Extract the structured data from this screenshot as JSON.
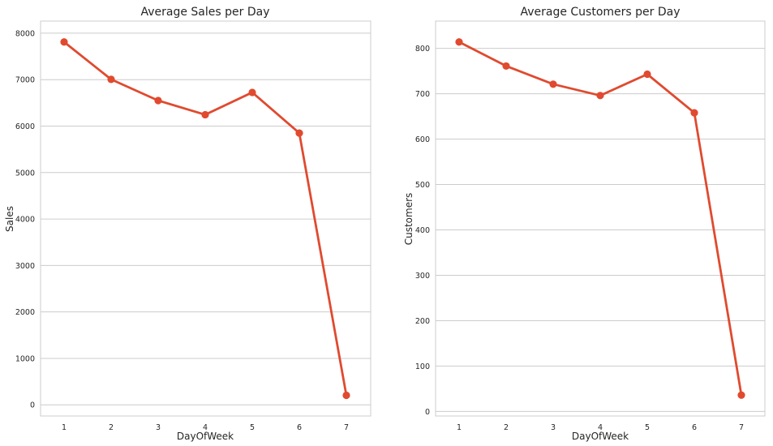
{
  "colors": {
    "series": "#e04a2f",
    "grid": "#cccccc",
    "text": "#262626"
  },
  "chart_data": [
    {
      "type": "line",
      "title": "Average Sales per Day",
      "xlabel": "DayOfWeek",
      "ylabel": "Sales",
      "x": [
        1,
        2,
        3,
        4,
        5,
        6,
        7
      ],
      "categories": [
        "1",
        "2",
        "3",
        "4",
        "5",
        "6",
        "7"
      ],
      "values": [
        7810,
        7005,
        6550,
        6245,
        6725,
        5850,
        205
      ],
      "yticks": [
        0,
        1000,
        2000,
        3000,
        4000,
        5000,
        6000,
        7000,
        8000
      ],
      "ylim": [
        -240,
        8260
      ],
      "grid": true,
      "marker": "circle"
    },
    {
      "type": "line",
      "title": "Average Customers per Day",
      "xlabel": "DayOfWeek",
      "ylabel": "Customers",
      "x": [
        1,
        2,
        3,
        4,
        5,
        6,
        7
      ],
      "categories": [
        "1",
        "2",
        "3",
        "4",
        "5",
        "6",
        "7"
      ],
      "values": [
        814,
        761,
        721,
        696,
        743,
        658,
        36
      ],
      "yticks": [
        0,
        100,
        200,
        300,
        400,
        500,
        600,
        700,
        800
      ],
      "ylim": [
        -10,
        860
      ],
      "grid": true,
      "marker": "circle"
    }
  ]
}
